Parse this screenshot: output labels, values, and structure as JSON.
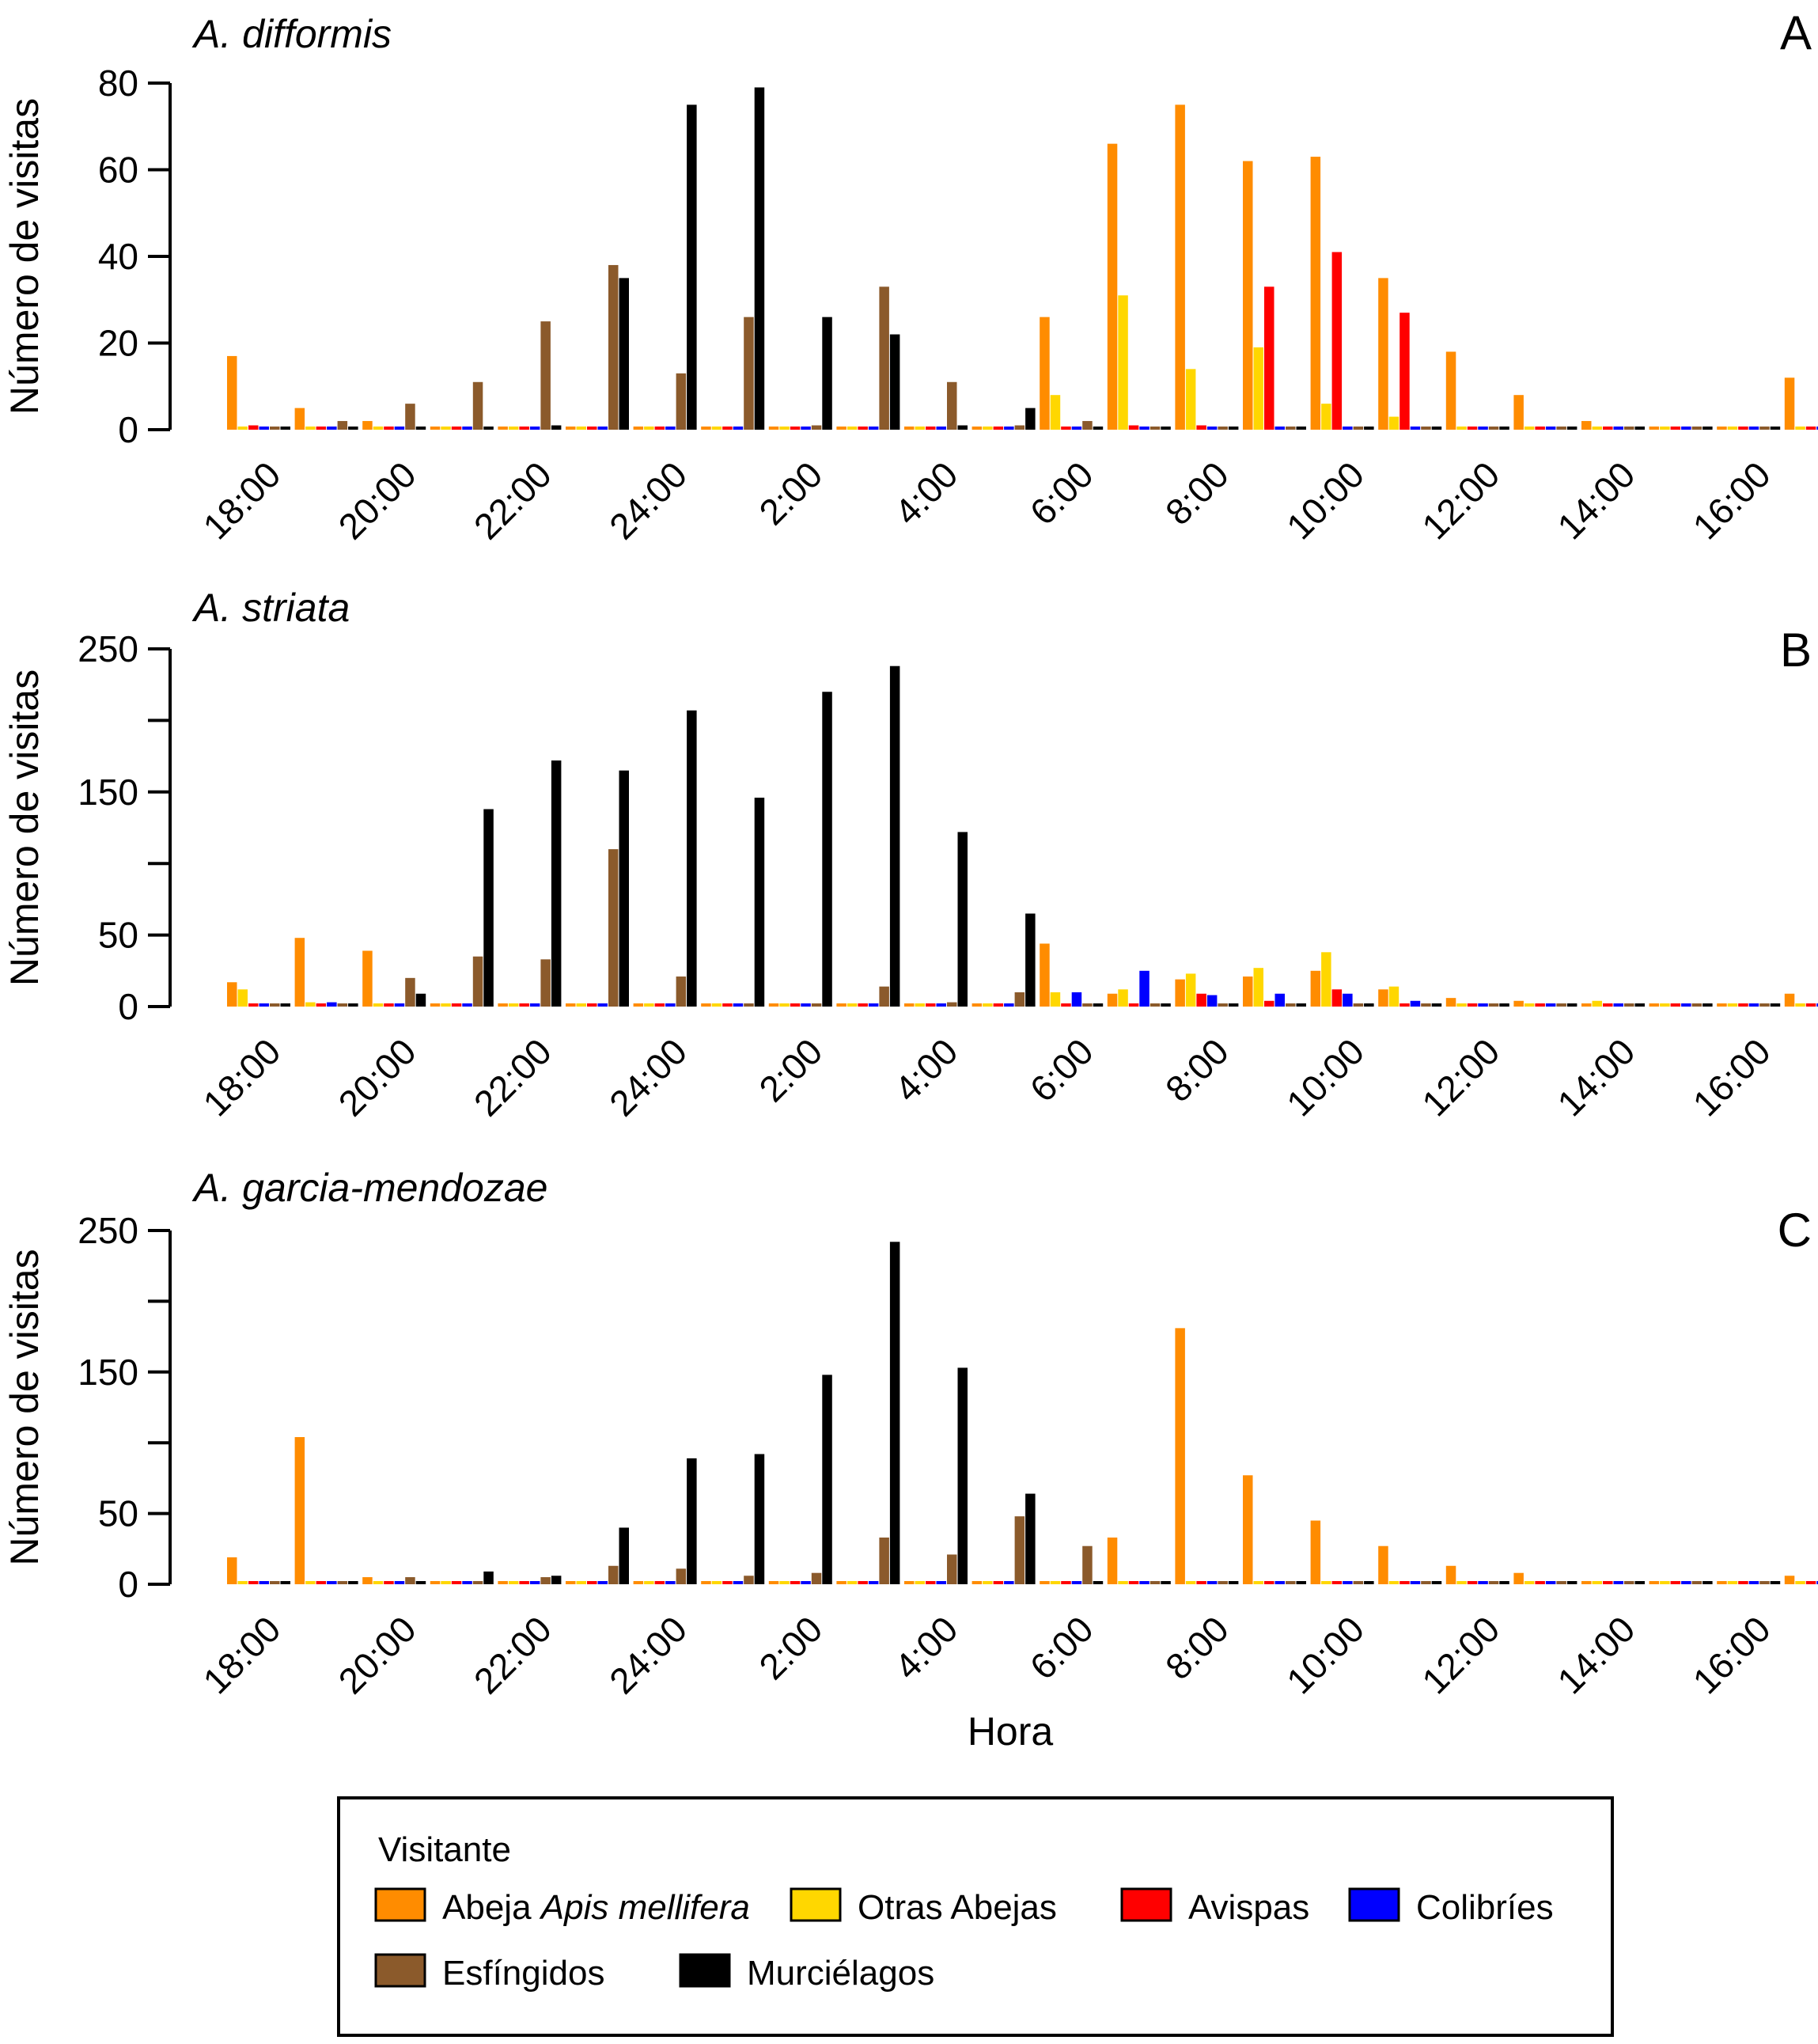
{
  "chart_data": [
    {
      "type": "bar",
      "panel": "A",
      "title": "A. difformis",
      "ylabel": "Número de visitas",
      "xlabel": "",
      "ylim": [
        0,
        80
      ],
      "yticks": [
        0,
        20,
        40,
        60,
        80
      ],
      "ytick_labels": [
        "0",
        "20",
        "40",
        "60",
        "80"
      ],
      "categories": [
        "18:00",
        "19:00",
        "20:00",
        "21:00",
        "22:00",
        "23:00",
        "24:00",
        "1:00",
        "2:00",
        "3:00",
        "4:00",
        "5:00",
        "6:00",
        "7:00",
        "8:00",
        "9:00",
        "10:00",
        "11:00",
        "12:00",
        "13:00",
        "14:00",
        "15:00",
        "16:00",
        "17:00"
      ],
      "series": [
        {
          "name": "Abeja Apis mellifera",
          "values": [
            17,
            5,
            2,
            0,
            0,
            0,
            0,
            0,
            0,
            0,
            0,
            0,
            26,
            66,
            75,
            62,
            63,
            35,
            18,
            8,
            2,
            0,
            0,
            12
          ]
        },
        {
          "name": "Otras Abejas",
          "values": [
            0,
            0,
            0,
            0,
            0,
            0,
            0,
            0,
            0,
            0,
            0,
            0,
            8,
            31,
            14,
            19,
            6,
            3,
            0,
            0,
            0,
            0,
            0,
            0
          ]
        },
        {
          "name": "Avispas",
          "values": [
            1,
            0,
            0,
            0,
            0,
            0,
            0,
            0,
            0,
            0,
            0,
            0,
            0,
            1,
            1,
            33,
            41,
            27,
            0,
            0,
            0,
            0,
            0,
            0
          ]
        },
        {
          "name": "Colibríes",
          "values": [
            0,
            0,
            0,
            0,
            0,
            0,
            0,
            0,
            0,
            0,
            0,
            0,
            0,
            0,
            0,
            0,
            0,
            0,
            0,
            0,
            0,
            0,
            0,
            0
          ]
        },
        {
          "name": "Esfíngidos",
          "values": [
            0,
            2,
            6,
            11,
            25,
            38,
            13,
            26,
            1,
            33,
            11,
            1,
            2,
            0,
            0,
            0,
            0,
            0,
            0,
            0,
            0,
            0,
            0,
            0
          ]
        },
        {
          "name": "Murciélagos",
          "values": [
            0,
            0,
            0,
            0,
            1,
            35,
            75,
            79,
            26,
            22,
            1,
            5,
            0,
            0,
            0,
            0,
            0,
            0,
            0,
            0,
            0,
            0,
            0,
            0
          ]
        }
      ]
    },
    {
      "type": "bar",
      "panel": "B",
      "title": "A. striata",
      "ylabel": "Número de visitas",
      "xlabel": "",
      "ylim": [
        0,
        250
      ],
      "yticks": [
        0,
        50,
        100,
        150,
        200,
        250
      ],
      "ytick_labels": [
        "0",
        "50",
        "",
        "150",
        "",
        "250"
      ],
      "categories": [
        "18:00",
        "19:00",
        "20:00",
        "21:00",
        "22:00",
        "23:00",
        "24:00",
        "1:00",
        "2:00",
        "3:00",
        "4:00",
        "5:00",
        "6:00",
        "7:00",
        "8:00",
        "9:00",
        "10:00",
        "11:00",
        "12:00",
        "13:00",
        "14:00",
        "15:00",
        "16:00",
        "17:00"
      ],
      "series": [
        {
          "name": "Abeja Apis mellifera",
          "values": [
            17,
            48,
            39,
            0,
            0,
            0,
            0,
            0,
            0,
            0,
            0,
            0,
            44,
            9,
            19,
            21,
            25,
            12,
            6,
            4,
            0,
            0,
            0,
            9
          ]
        },
        {
          "name": "Otras Abejas",
          "values": [
            12,
            3,
            0,
            0,
            0,
            0,
            0,
            0,
            0,
            0,
            0,
            0,
            10,
            12,
            23,
            27,
            38,
            14,
            0,
            1,
            4,
            0,
            0,
            0
          ]
        },
        {
          "name": "Avispas",
          "values": [
            0,
            0,
            0,
            0,
            0,
            0,
            0,
            0,
            0,
            0,
            0,
            0,
            0,
            0,
            9,
            4,
            12,
            0,
            0,
            0,
            0,
            0,
            0,
            0
          ]
        },
        {
          "name": "Colibríes",
          "values": [
            0,
            3,
            0,
            0,
            0,
            0,
            0,
            0,
            0,
            0,
            0,
            0,
            10,
            25,
            8,
            9,
            9,
            4,
            0,
            0,
            0,
            0,
            0,
            0
          ]
        },
        {
          "name": "Esfíngidos",
          "values": [
            0,
            0,
            20,
            35,
            33,
            110,
            21,
            0,
            1,
            14,
            3,
            10,
            0,
            0,
            0,
            0,
            0,
            0,
            0,
            0,
            0,
            0,
            0,
            0
          ]
        },
        {
          "name": "Murciélagos",
          "values": [
            0,
            0,
            9,
            138,
            172,
            165,
            207,
            146,
            220,
            238,
            122,
            65,
            0,
            0,
            0,
            0,
            0,
            0,
            0,
            0,
            0,
            0,
            0,
            0
          ]
        }
      ]
    },
    {
      "type": "bar",
      "panel": "C",
      "title": "A. garcia-mendozae",
      "ylabel": "Número de visitas",
      "xlabel": "Hora",
      "ylim": [
        0,
        250
      ],
      "yticks": [
        0,
        50,
        100,
        150,
        200,
        250
      ],
      "ytick_labels": [
        "0",
        "50",
        "",
        "150",
        "",
        "250"
      ],
      "categories": [
        "18:00",
        "19:00",
        "20:00",
        "21:00",
        "22:00",
        "23:00",
        "24:00",
        "1:00",
        "2:00",
        "3:00",
        "4:00",
        "5:00",
        "6:00",
        "7:00",
        "8:00",
        "9:00",
        "10:00",
        "11:00",
        "12:00",
        "13:00",
        "14:00",
        "15:00",
        "16:00",
        "17:00"
      ],
      "series": [
        {
          "name": "Abeja Apis mellifera",
          "values": [
            19,
            104,
            5,
            0,
            0,
            0,
            0,
            0,
            0,
            0,
            0,
            0,
            0,
            33,
            181,
            77,
            45,
            27,
            13,
            8,
            0,
            0,
            0,
            6
          ]
        },
        {
          "name": "Otras Abejas",
          "values": [
            0,
            0,
            0,
            0,
            0,
            0,
            0,
            0,
            0,
            0,
            0,
            0,
            0,
            0,
            0,
            0,
            0,
            0,
            0,
            0,
            0,
            0,
            0,
            0
          ]
        },
        {
          "name": "Avispas",
          "values": [
            0,
            0,
            0,
            0,
            0,
            0,
            0,
            0,
            0,
            0,
            0,
            0,
            0,
            0,
            0,
            0,
            0,
            0,
            0,
            0,
            0,
            0,
            0,
            0
          ]
        },
        {
          "name": "Colibríes",
          "values": [
            0,
            0,
            0,
            0,
            0,
            0,
            0,
            0,
            0,
            0,
            0,
            0,
            0,
            0,
            0,
            0,
            0,
            0,
            0,
            0,
            0,
            0,
            0,
            0
          ]
        },
        {
          "name": "Esfíngidos",
          "values": [
            0,
            2,
            5,
            2,
            5,
            13,
            11,
            6,
            8,
            33,
            21,
            48,
            27,
            2,
            0,
            0,
            0,
            0,
            0,
            0,
            0,
            0,
            0,
            0
          ]
        },
        {
          "name": "Murciélagos",
          "values": [
            0,
            1,
            1,
            9,
            6,
            40,
            89,
            92,
            148,
            242,
            153,
            64,
            0,
            0,
            0,
            0,
            0,
            0,
            0,
            0,
            0,
            0,
            0,
            0
          ]
        }
      ]
    }
  ],
  "x_tick_labels": [
    "18:00",
    "20:00",
    "22:00",
    "24:00",
    "2:00",
    "4:00",
    "6:00",
    "8:00",
    "10:00",
    "12:00",
    "14:00",
    "16:00"
  ],
  "colors": {
    "Abeja Apis mellifera": "#FF8C00",
    "Otras Abejas": "#FFD700",
    "Avispas": "#FF0000",
    "Colibríes": "#0000FF",
    "Esfíngidos": "#8B5A2B",
    "Murciélagos": "#000000"
  },
  "legend": {
    "title": "Visitante",
    "placement": "bottom",
    "items": [
      {
        "label_plain": "Abeja ",
        "label_italic": "Apis mellifera",
        "color": "#FF8C00"
      },
      {
        "label_plain": "Otras Abejas",
        "label_italic": "",
        "color": "#FFD700"
      },
      {
        "label_plain": "Avispas",
        "label_italic": "",
        "color": "#FF0000"
      },
      {
        "label_plain": "Colibríes",
        "label_italic": "",
        "color": "#0000FF"
      },
      {
        "label_plain": "Esfíngidos",
        "label_italic": "",
        "color": "#8B5A2B"
      },
      {
        "label_plain": "Murciélagos",
        "label_italic": "",
        "color": "#000000"
      }
    ]
  }
}
